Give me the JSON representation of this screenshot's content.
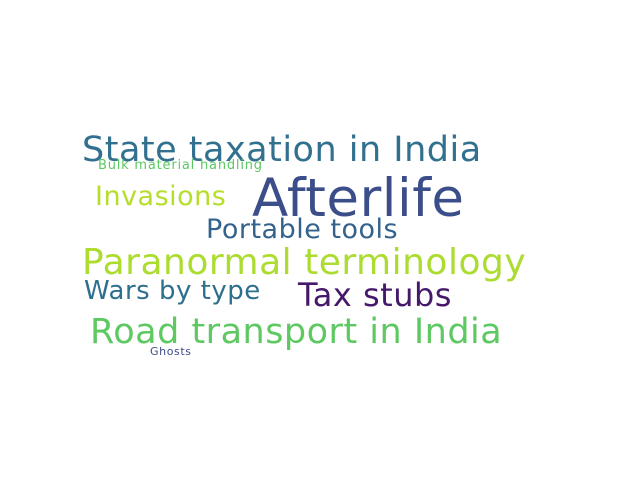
{
  "word_cloud": {
    "words": [
      {
        "text": "State taxation in India",
        "color": "#31708e"
      },
      {
        "text": "Bulk material handling",
        "color": "#5cc863"
      },
      {
        "text": "Afterlife",
        "color": "#3b4e8a"
      },
      {
        "text": "Invasions",
        "color": "#b5de2b"
      },
      {
        "text": "Portable tools",
        "color": "#33638d"
      },
      {
        "text": "Paranormal terminology",
        "color": "#addc30"
      },
      {
        "text": "Wars by type",
        "color": "#2e6f8e"
      },
      {
        "text": "Tax stubs",
        "color": "#46186b"
      },
      {
        "text": "Road transport in India",
        "color": "#5ec962"
      },
      {
        "text": "Ghosts",
        "color": "#3e4a89"
      }
    ]
  }
}
